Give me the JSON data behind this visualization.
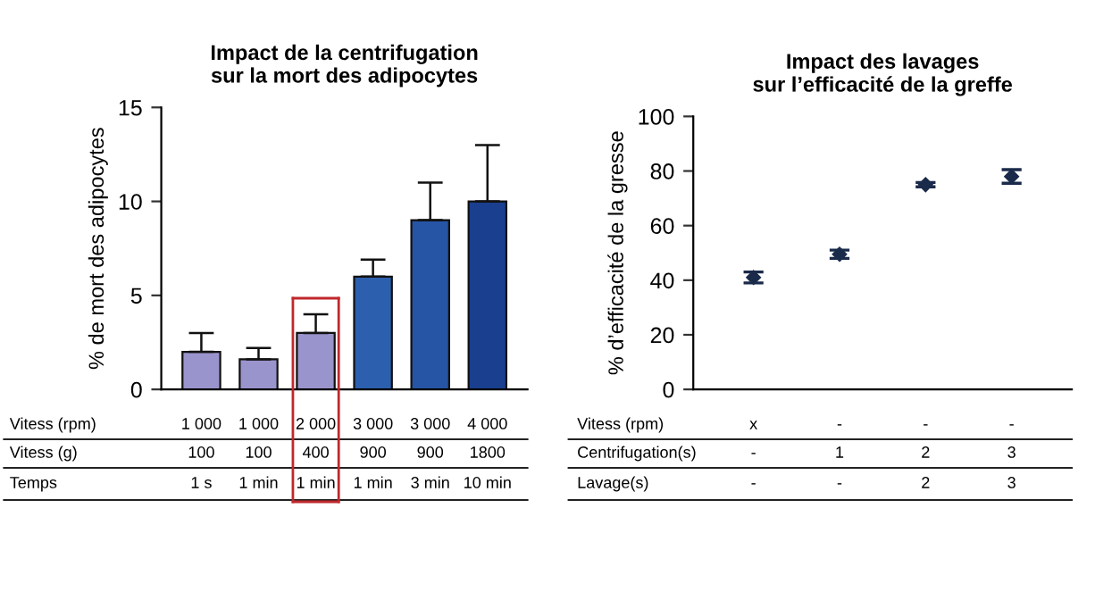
{
  "chart_data": [
    {
      "type": "bar",
      "title": "Impact de la centrifugation\nsur la mort des adipocytes",
      "ylabel": "% de mort des adipocytes",
      "categories": [
        "1 000\n100\n1 s",
        "1 000\n100\n1 min",
        "2 000\n400\n1 min",
        "3 000\n900\n1 min",
        "3 000\n900\n3 min",
        "4 000\n1800\n10 min"
      ],
      "values": [
        2,
        1.6,
        3,
        6,
        9,
        10
      ],
      "errors": [
        [
          2,
          3
        ],
        [
          1.6,
          2.2
        ],
        [
          3,
          4
        ],
        [
          6,
          6.9
        ],
        [
          9,
          11
        ],
        [
          10,
          13
        ]
      ],
      "colors": [
        "#9a94cc",
        "#9a94cc",
        "#9a94cc",
        "#2c5fae",
        "#2655a6",
        "#1b3f8f"
      ],
      "annotations": [
        "Vitess (rpm)\nVitess (g)\nTemps"
      ],
      "ylim": [
        0,
        15
      ],
      "yticks": [
        0,
        5,
        10,
        15
      ],
      "grid": false,
      "legend": false
    },
    {
      "type": "scatter",
      "title": "Impact des lavages\nsur l’efficacité de la greffe",
      "ylabel": "% d’efficacité de la gresse",
      "categories": [
        "x\n-\n-",
        "-\n1\n-",
        "-\n2\n2",
        "-\n3\n3"
      ],
      "values": [
        41,
        49.5,
        75,
        78
      ],
      "errors": [
        2,
        1.5,
        0.8,
        2.5
      ],
      "color": "#1a2a4a",
      "marker": "diamond",
      "annotations": [
        "Vitess (rpm)\nCentrifugation(s)\nLavage(s)"
      ],
      "ylim": [
        0,
        100
      ],
      "yticks": [
        0,
        20,
        40,
        60,
        80,
        100
      ],
      "grid": false,
      "legend": false
    }
  ]
}
